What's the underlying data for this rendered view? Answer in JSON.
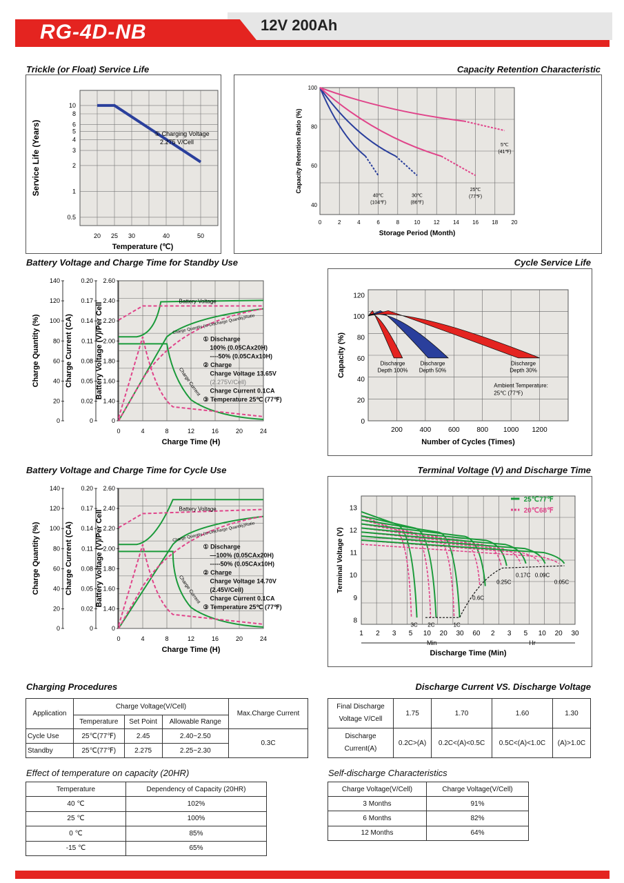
{
  "header": {
    "model": "RG-4D-NB",
    "spec": "12V  200Ah"
  },
  "sections": {
    "trickle": "Trickle (or Float) Service Life",
    "retention": "Capacity  Retention  Characteristic",
    "standby": "Battery Voltage and Charge Time for Standby Use",
    "cycle_life": "Cycle Service Life",
    "cycle_use": "Battery Voltage and Charge Time for Cycle Use",
    "terminal": "Terminal Voltage (V) and Discharge Time",
    "charging": "Charging Procedures",
    "discharge": "Discharge Current VS. Discharge Voltage",
    "temp_effect": "Effect of temperature on capacity (20HR)",
    "self_discharge": "Self-discharge Characteristics"
  },
  "chart_data": [
    {
      "type": "line",
      "xlabel": "Temperature (℃)",
      "ylabel": "Service Life (Years)",
      "x_ticks": [
        "20",
        "25",
        "30",
        "40",
        "50"
      ],
      "y_ticks": [
        "10",
        "8",
        "6",
        "5",
        "4",
        "3",
        "2",
        "1",
        "0.5"
      ],
      "yscale": "log",
      "series": [
        {
          "x": [
            20,
            25,
            50
          ],
          "values": [
            10,
            10,
            2.2
          ]
        }
      ],
      "annotation": [
        "① Charging Voltage",
        "2.275 V/Cell"
      ]
    },
    {
      "type": "line",
      "xlabel": "Storage Period (Month)",
      "ylabel": "Capacity Retention Ratio (%)",
      "x_ticks": [
        "0",
        "2",
        "4",
        "6",
        "8",
        "10",
        "12",
        "14",
        "16",
        "18",
        "20"
      ],
      "y_ticks": [
        "100",
        "80",
        "60",
        "40"
      ],
      "series": [
        {
          "name": "40℃ (104℉)",
          "x": [
            0,
            6
          ],
          "values": [
            100,
            55
          ]
        },
        {
          "name": "30℃ (86℉)",
          "x": [
            0,
            10
          ],
          "values": [
            100,
            55
          ]
        },
        {
          "name": "25℃ (77℉)",
          "x": [
            0,
            16
          ],
          "values": [
            100,
            55
          ]
        },
        {
          "name": "5℃ (41℉)",
          "x": [
            0,
            19
          ],
          "values": [
            100,
            78
          ]
        }
      ],
      "labels": [
        {
          "l1": "40℃",
          "l2": "(104℉)"
        },
        {
          "l1": "30℃",
          "l2": "(86℉)"
        },
        {
          "l1": "25℃",
          "l2": "(77℉)"
        },
        {
          "l1": "5℃",
          "l2": "(41℉)"
        }
      ]
    },
    {
      "type": "line",
      "xlabel": "Charge Time (H)",
      "axes": [
        "Charge Quantity (%)",
        "Charge Current (CA)",
        "Battery Voltage (V)/Per Cell"
      ],
      "x_ticks": [
        "0",
        "4",
        "8",
        "12",
        "16",
        "20",
        "24"
      ],
      "q_ticks": [
        "140",
        "120",
        "100",
        "80",
        "60",
        "40",
        "20",
        "0"
      ],
      "c_ticks": [
        "0.20",
        "0.17",
        "0.14",
        "0.11",
        "0.08",
        "0.05",
        "0.02",
        "0"
      ],
      "v_ticks": [
        "2.60",
        "2.40",
        "2.20",
        "2.00",
        "1.80",
        "1.60",
        "1.40",
        "0"
      ],
      "curve_labels": [
        "Battery Voltage",
        "Charge Quantity (to-Discharge Quantity)Ratio",
        "Charge Current"
      ],
      "legend": [
        "① Discharge",
        "100% (0.05CAx20H)",
        "----50% (0.05CAx10H)",
        "② Charge",
        "Charge Voltage 13.65V",
        "(2.275V/Cell)",
        "Charge Current 0.1CA",
        "③ Temperature 25℃ (77℉)"
      ]
    },
    {
      "type": "area",
      "xlabel": "Number of Cycles (Times)",
      "ylabel": "Capacity (%)",
      "x_ticks": [
        "200",
        "400",
        "600",
        "800",
        "1000",
        "1200"
      ],
      "y_ticks": [
        "120",
        "100",
        "80",
        "60",
        "40",
        "20",
        "0"
      ],
      "series": [
        {
          "name": "Discharge Depth 100%",
          "x": [
            0,
            260
          ],
          "values": [
            105,
            60
          ]
        },
        {
          "name": "Discharge Depth 50%",
          "x": [
            0,
            550
          ],
          "values": [
            105,
            60
          ]
        },
        {
          "name": "Discharge Depth 30%",
          "x": [
            0,
            1200
          ],
          "values": [
            105,
            60
          ]
        }
      ],
      "labels": [
        {
          "l1": "Discharge",
          "l2": "Depth 100%"
        },
        {
          "l1": "Discharge",
          "l2": "Depth 50%"
        },
        {
          "l1": "Discharge",
          "l2": "Depth 30%"
        }
      ],
      "ambient": [
        "Ambient Temperature:",
        "25℃ (77℉)"
      ]
    },
    {
      "type": "line",
      "xlabel": "Charge Time (H)",
      "x_ticks": [
        "0",
        "4",
        "8",
        "12",
        "16",
        "20",
        "24"
      ],
      "q_ticks": [
        "140",
        "120",
        "100",
        "80",
        "60",
        "40",
        "20",
        "0"
      ],
      "c_ticks": [
        "0.20",
        "0.17",
        "0.14",
        "0.11",
        "0.08",
        "0.05",
        "0.02",
        "0"
      ],
      "v_ticks": [
        "2.60",
        "2.40",
        "2.20",
        "2.00",
        "1.80",
        "1.60",
        "1.40",
        "0"
      ],
      "axes": [
        "Charge Quantity (%)",
        "Charge Current (CA)",
        "Battery Voltage (V)/Per Cell"
      ],
      "curve_labels": [
        "Battery Voltage",
        "Charge Quantity (to-Discharge Quantity)Ratio",
        "Charge Current"
      ],
      "legend": [
        "① Discharge",
        "—100% (0.05CAx20H)",
        "-----50% (0.05CAx10H)",
        "② Charge",
        "Charge Voltage 14.70V",
        "(2.45V/Cell)",
        "Charge Current 0.1CA",
        "③ Temperature 25℃ (77℉)"
      ]
    },
    {
      "type": "line",
      "xlabel": "Discharge Time (Min)",
      "ylabel": "Terminal Voltage (V)",
      "y_ticks": [
        "13",
        "12",
        "11",
        "10",
        "9",
        "8"
      ],
      "x_min_ticks": [
        "1",
        "2",
        "3",
        "5",
        "10",
        "20",
        "30",
        "60"
      ],
      "x_hr_ticks": [
        "2",
        "3",
        "5",
        "10",
        "20",
        "30"
      ],
      "unit_min": "Min",
      "unit_hr": "Hr",
      "legend": [
        "25℃77℉",
        "20℃68℉"
      ],
      "rate_labels": [
        "3C",
        "2C",
        "1C",
        "0.6C",
        "0.25C",
        "0.17C",
        "0.09C",
        "0.05C"
      ],
      "legend_colors": {
        "25C": "#1a9a3a",
        "20C": "#e0448a"
      }
    }
  ],
  "charging_table": {
    "h_application": "Application",
    "h_voltage": "Charge Voltage(V/Cell)",
    "h_max": "Max.Charge Current",
    "h_temp": "Temperature",
    "h_set": "Set Point",
    "h_range": "Allowable Range",
    "rows": [
      {
        "app": "Cycle Use",
        "temp": "25℃(77℉)",
        "set": "2.45",
        "range": "2.40~2.50"
      },
      {
        "app": "Standby",
        "temp": "25℃(77℉)",
        "set": "2.275",
        "range": "2.25~2.30"
      }
    ],
    "max_current": "0.3C"
  },
  "discharge_table": {
    "h1a": "Final Discharge",
    "h1b": "Voltage V/Cell",
    "h2a": "Discharge",
    "h2b": "Current(A)",
    "voltages": [
      "1.75",
      "1.70",
      "1.60",
      "1.30"
    ],
    "currents": [
      "0.2C>(A)",
      "0.2C<(A)<0.5C",
      "0.5C<(A)<1.0C",
      "(A)>1.0C"
    ]
  },
  "temp_table": {
    "h_temp": "Temperature",
    "h_dep": "Dependency of Capacity (20HR)",
    "rows": [
      {
        "t": "40 ℃",
        "v": "102%"
      },
      {
        "t": "25 ℃",
        "v": "100%"
      },
      {
        "t": "0 ℃",
        "v": "85%"
      },
      {
        "t": "-15 ℃",
        "v": "65%"
      }
    ]
  },
  "self_table": {
    "h_v": "Charge Voltage(V/Cell)",
    "h_c": "Charge Voltage(V/Cell)",
    "rows": [
      {
        "p": "3 Months",
        "v": "91%"
      },
      {
        "p": "6 Months",
        "v": "82%"
      },
      {
        "p": "12 Months",
        "v": "64%"
      }
    ]
  },
  "colors": {
    "accent": "#e42420",
    "blue": "#2a3f9c",
    "green": "#1a9a3a",
    "pink": "#e0448a",
    "grid_bg": "#e8e6e2"
  }
}
